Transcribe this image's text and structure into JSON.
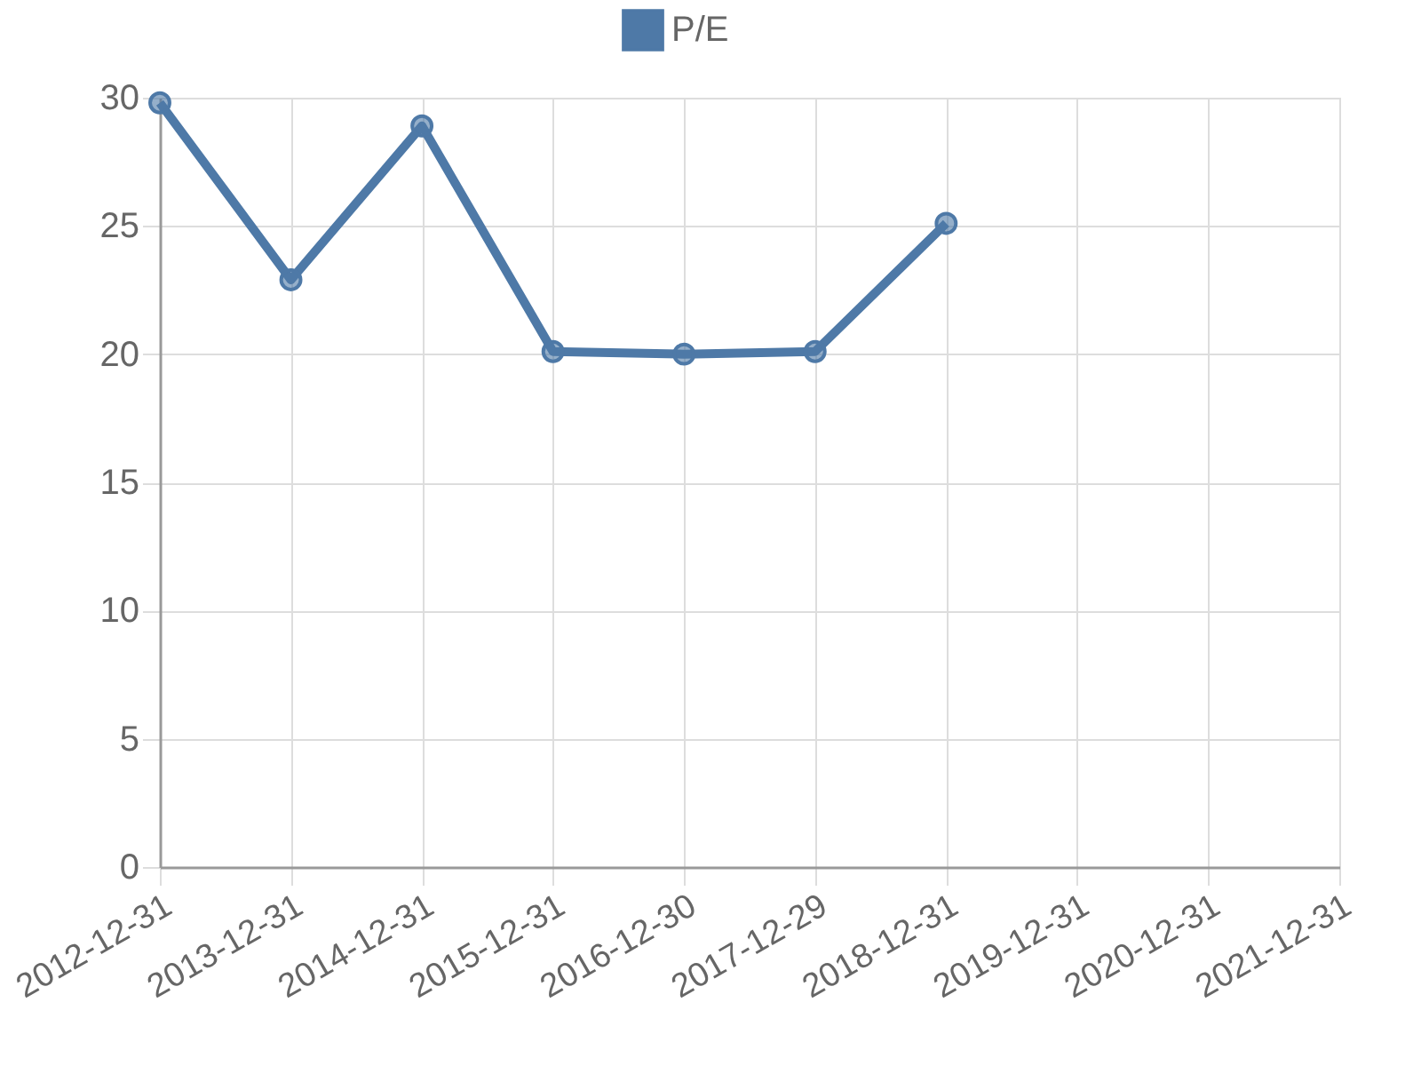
{
  "chart_data": {
    "type": "line",
    "categories": [
      "2012-12-31",
      "2013-12-31",
      "2014-12-31",
      "2015-12-31",
      "2016-12-30",
      "2017-12-29",
      "2018-12-31",
      "2019-12-31",
      "2020-12-31",
      "2021-12-31"
    ],
    "series": [
      {
        "name": "P/E",
        "color": "#4e79a7",
        "values": [
          29.8,
          22.9,
          28.9,
          20.1,
          20.0,
          20.1,
          25.1,
          null,
          null,
          null
        ]
      }
    ],
    "ylim": [
      0,
      30
    ],
    "yticks": [
      0,
      5,
      10,
      15,
      20,
      25,
      30
    ],
    "grid": true,
    "legend": "top",
    "marker": "circle",
    "line_style": "solid"
  }
}
